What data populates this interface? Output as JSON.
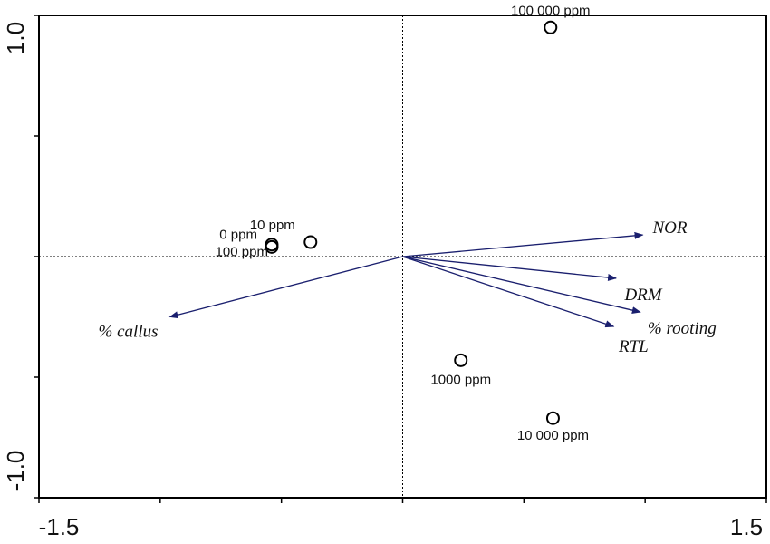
{
  "chart_data": {
    "type": "scatter",
    "title": "",
    "xlabel": "",
    "ylabel": "",
    "xlim": [
      -1.5,
      1.5
    ],
    "ylim": [
      -1.0,
      1.0
    ],
    "x_tick_labels": [
      "-1.5",
      "1.5"
    ],
    "y_tick_labels": [
      "1.0",
      "-1.0"
    ],
    "grid": false,
    "zero_lines": true,
    "legend": "none",
    "sample_points": [
      {
        "label": "100 000 ppm",
        "x": 0.61,
        "y": 0.95
      },
      {
        "label": "10 ppm",
        "x": -0.38,
        "y": 0.06
      },
      {
        "label": "0 ppm",
        "x": -0.54,
        "y": 0.05
      },
      {
        "label": "100 ppm",
        "x": -0.54,
        "y": 0.04
      },
      {
        "label": "1000 ppm",
        "x": 0.24,
        "y": -0.43
      },
      {
        "label": "10 000 ppm",
        "x": 0.62,
        "y": -0.67
      }
    ],
    "vectors": [
      {
        "label": "NOR",
        "x": 0.99,
        "y": 0.09
      },
      {
        "label": "DRM",
        "x": 0.88,
        "y": -0.09
      },
      {
        "label": "% rooting",
        "x": 0.98,
        "y": -0.23
      },
      {
        "label": "RTL",
        "x": 0.87,
        "y": -0.29
      },
      {
        "label": "% callus",
        "x": -0.96,
        "y": -0.25
      }
    ],
    "colors": {
      "vector": "#1a1f6e",
      "points": "#000000",
      "axes": "#000000"
    }
  }
}
